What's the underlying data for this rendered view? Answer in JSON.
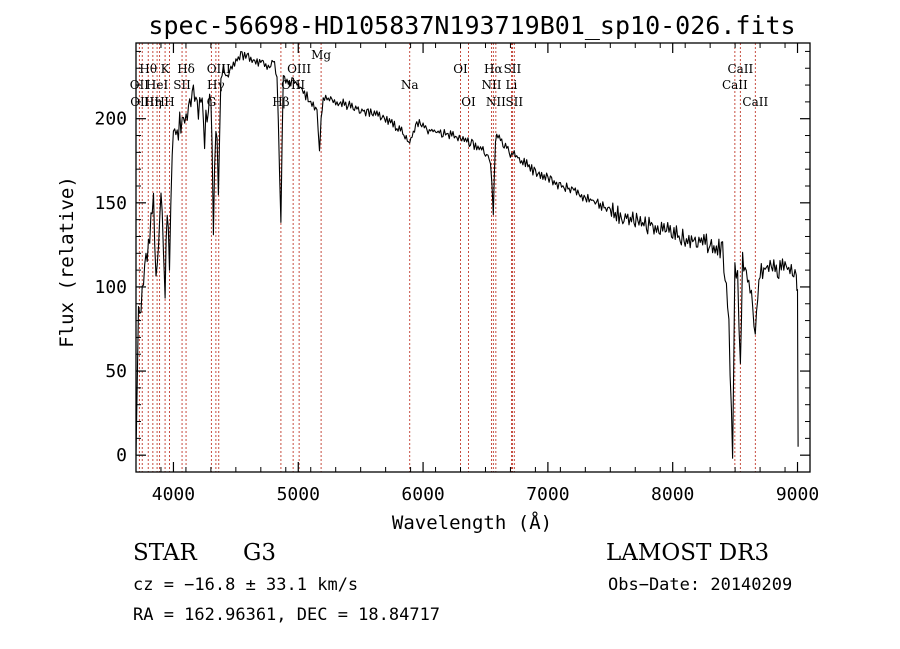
{
  "chart_data": {
    "type": "line",
    "title": "spec-56698-HD105837N193719B01_sp10-026.fits",
    "xlabel": "Wavelength (Å)",
    "ylabel": "Flux (relative)",
    "xlim": [
      3700,
      9100
    ],
    "ylim": [
      -10,
      245
    ],
    "x_ticks": [
      4000,
      5000,
      6000,
      7000,
      8000,
      9000
    ],
    "y_ticks": [
      0,
      50,
      100,
      150,
      200
    ],
    "series": [
      {
        "name": "spectrum",
        "x": [
          3700,
          3720,
          3750,
          3780,
          3800,
          3820,
          3840,
          3860,
          3880,
          3900,
          3920,
          3933,
          3950,
          3968,
          3990,
          4010,
          4030,
          4050,
          4080,
          4101,
          4130,
          4160,
          4190,
          4220,
          4250,
          4280,
          4300,
          4320,
          4340,
          4360,
          4380,
          4400,
          4430,
          4460,
          4500,
          4550,
          4600,
          4650,
          4700,
          4750,
          4800,
          4830,
          4861,
          4880,
          4900,
          4950,
          5000,
          5050,
          5100,
          5150,
          5170,
          5183,
          5200,
          5250,
          5300,
          5400,
          5500,
          5600,
          5700,
          5800,
          5893,
          5950,
          6000,
          6100,
          6200,
          6300,
          6400,
          6500,
          6540,
          6563,
          6580,
          6600,
          6650,
          6700,
          6800,
          6900,
          7000,
          7100,
          7200,
          7300,
          7400,
          7500,
          7600,
          7700,
          7800,
          7900,
          8000,
          8100,
          8200,
          8300,
          8400,
          8450,
          8480,
          8498,
          8520,
          8542,
          8560,
          8600,
          8620,
          8662,
          8700,
          8750,
          8800,
          8850,
          8900,
          8950,
          8990,
          9000,
          9005
        ],
        "values": [
          0,
          80,
          100,
          115,
          125,
          140,
          150,
          105,
          130,
          160,
          120,
          95,
          150,
          110,
          180,
          190,
          185,
          200,
          195,
          200,
          205,
          215,
          205,
          215,
          190,
          210,
          215,
          140,
          200,
          160,
          215,
          230,
          225,
          230,
          235,
          238,
          236,
          232,
          235,
          230,
          235,
          225,
          140,
          228,
          222,
          222,
          220,
          215,
          210,
          205,
          180,
          200,
          213,
          212,
          210,
          208,
          205,
          204,
          200,
          195,
          185,
          198,
          195,
          192,
          191,
          188,
          185,
          180,
          175,
          145,
          188,
          190,
          185,
          180,
          175,
          168,
          165,
          160,
          158,
          153,
          150,
          145,
          143,
          140,
          137,
          135,
          132,
          128,
          127,
          125,
          122,
          80,
          -5,
          110,
          105,
          50,
          115,
          108,
          102,
          75,
          110,
          112,
          115,
          110,
          112,
          108,
          105,
          95,
          5
        ]
      }
    ],
    "lines": [
      {
        "wl": 3727,
        "label": "OII",
        "row": 2
      },
      {
        "wl": 3750,
        "label": "OIII",
        "row": 3
      },
      {
        "wl": 3798,
        "label": "Hθ",
        "row": 1
      },
      {
        "wl": 3835,
        "label": "Hη",
        "row": 3
      },
      {
        "wl": 3869,
        "label": "HeI",
        "row": 2
      },
      {
        "wl": 3889,
        "label": "H",
        "row": 3
      },
      {
        "wl": 3933,
        "label": "K",
        "row": 1
      },
      {
        "wl": 3968,
        "label": "H",
        "row": 3
      },
      {
        "wl": 4069,
        "label": "SII",
        "row": 2
      },
      {
        "wl": 4101,
        "label": "Hδ",
        "row": 1
      },
      {
        "wl": 4304,
        "label": "G",
        "row": 3
      },
      {
        "wl": 4340,
        "label": "Hγ",
        "row": 2
      },
      {
        "wl": 4363,
        "label": "OIII",
        "row": 1
      },
      {
        "wl": 4861,
        "label": "Hβ",
        "row": 3
      },
      {
        "wl": 4959,
        "label": "OIII",
        "row": 2
      },
      {
        "wl": 5007,
        "label": "OIII",
        "row": 1
      },
      {
        "wl": 5183,
        "label": "Mg",
        "row": 0
      },
      {
        "wl": 5893,
        "label": "Na",
        "row": 2
      },
      {
        "wl": 6300,
        "label": "OI",
        "row": 1
      },
      {
        "wl": 6364,
        "label": "OI",
        "row": 3
      },
      {
        "wl": 6548,
        "label": "NII",
        "row": 2
      },
      {
        "wl": 6563,
        "label": "Hα",
        "row": 1
      },
      {
        "wl": 6583,
        "label": "NII",
        "row": 3
      },
      {
        "wl": 6708,
        "label": "Li",
        "row": 2
      },
      {
        "wl": 6716,
        "label": "SII",
        "row": 1
      },
      {
        "wl": 6731,
        "label": "SII",
        "row": 3
      },
      {
        "wl": 8498,
        "label": "CaII",
        "row": 2
      },
      {
        "wl": 8542,
        "label": "CaII",
        "row": 1
      },
      {
        "wl": 8662,
        "label": "CaII",
        "row": 3
      }
    ]
  },
  "info": {
    "object_class": "STAR",
    "subclass": "G3",
    "survey": "LAMOST DR3",
    "redshift": "cz = −16.8 ± 33.1 km/s",
    "obs_date": "Obs−Date: 20140209",
    "coords": "RA = 162.96361, DEC =  18.84717"
  }
}
